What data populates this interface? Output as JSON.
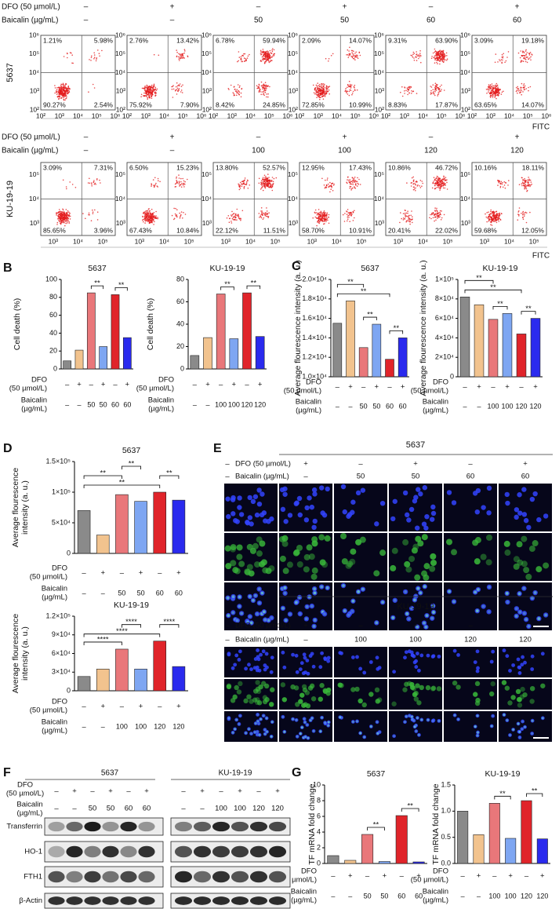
{
  "panel_letters": [
    "B",
    "C",
    "D",
    "E",
    "F",
    "G"
  ],
  "flow": {
    "axis_label": "FITC",
    "rows": [
      {
        "cell_line": "5637",
        "dfo_label": "DFO (50 µmol/L)",
        "baicalin_label": "Baicalin (µg/mL)",
        "dfo": [
          "–",
          "+",
          "–",
          "+",
          "–",
          "+"
        ],
        "baicalin": [
          "–",
          "–",
          "50",
          "50",
          "60",
          "60"
        ],
        "xticks": [
          "10²",
          "10³",
          "10⁴",
          "10⁵",
          "10⁶"
        ],
        "yticks": [
          "10⁶",
          "10⁵",
          "10⁴",
          "10³",
          "10²"
        ],
        "quadrants": [
          [
            "1.21%",
            "5.98%",
            "90.27%",
            "2.54%"
          ],
          [
            "2.76%",
            "13.42%",
            "75.92%",
            "7.90%"
          ],
          [
            "6.78%",
            "59.94%",
            "8.42%",
            "24.85%"
          ],
          [
            "2.09%",
            "14.07%",
            "72.85%",
            "10.99%"
          ],
          [
            "9.31%",
            "63.90%",
            "8.83%",
            "17.87%"
          ],
          [
            "3.09%",
            "19.18%",
            "63.65%",
            "14.07%"
          ]
        ]
      },
      {
        "cell_line": "KU-19-19",
        "dfo_label": "DFO (50 µmol/L)",
        "baicalin_label": "Baicalin (µg/mL)",
        "dfo": [
          "–",
          "+",
          "–",
          "+",
          "–",
          "+"
        ],
        "baicalin": [
          "–",
          "–",
          "100",
          "100",
          "120",
          "120"
        ],
        "xticks": [
          "10³",
          "10⁴",
          "10⁵"
        ],
        "yticks": [
          "10⁵",
          "10⁴",
          "10³"
        ],
        "quadrants": [
          [
            "3.09%",
            "7.31%",
            "85.65%",
            "3.96%"
          ],
          [
            "6.50%",
            "15.23%",
            "67.43%",
            "10.84%"
          ],
          [
            "13.80%",
            "52.57%",
            "22.12%",
            "11.51%"
          ],
          [
            "12.95%",
            "17.43%",
            "58.70%",
            "10.91%"
          ],
          [
            "10.86%",
            "46.72%",
            "20.41%",
            "22.02%"
          ],
          [
            "10.16%",
            "18.11%",
            "59.68%",
            "12.05%"
          ]
        ]
      }
    ]
  },
  "chart_data": [
    {
      "type": "bar",
      "title": "5637",
      "ylabel": [
        "Cell death (%)"
      ],
      "ylim": [
        0,
        100
      ],
      "yticks": [
        0,
        20,
        40,
        60,
        80,
        100
      ],
      "values": [
        9,
        21,
        85,
        25,
        83,
        35
      ],
      "colors": [
        "#8a8a8a",
        "#f2c38e",
        "#e9777a",
        "#7ea6f2",
        "#e0242a",
        "#2a2aee"
      ],
      "dfo_label": [
        "DFO",
        "(50 µmol/L)"
      ],
      "baicalin_label": [
        "Baicalin",
        "(µg/mL)"
      ],
      "dfo": [
        "–",
        "+",
        "–",
        "+",
        "–",
        "+"
      ],
      "baicalin": [
        "–",
        "–",
        "50",
        "50",
        "60",
        "60"
      ],
      "annotations": [
        {
          "text": "**",
          "between": [
            2,
            3
          ]
        },
        {
          "text": "**",
          "between": [
            4,
            5
          ]
        }
      ]
    },
    {
      "type": "bar",
      "title": "KU-19-19",
      "ylabel": [
        "Cell death (%)"
      ],
      "ylim": [
        0,
        80
      ],
      "yticks": [
        0,
        20,
        40,
        60,
        80
      ],
      "values": [
        12,
        28,
        67,
        27,
        68,
        29
      ],
      "colors": [
        "#8a8a8a",
        "#f2c38e",
        "#e9777a",
        "#7ea6f2",
        "#e0242a",
        "#2a2aee"
      ],
      "dfo_label": [
        "DFO",
        "(50 µmol/L)"
      ],
      "baicalin_label": [
        "Baicalin",
        "(µg/mL)"
      ],
      "dfo": [
        "–",
        "+",
        "–",
        "+",
        "–",
        "+"
      ],
      "baicalin": [
        "–",
        "–",
        "100",
        "100",
        "120",
        "120"
      ],
      "annotations": [
        {
          "text": "**",
          "between": [
            2,
            3
          ]
        },
        {
          "text": "**",
          "between": [
            4,
            5
          ]
        }
      ]
    },
    {
      "type": "bar",
      "title": "5637",
      "ylabel": [
        "Average flourescence intensity (a. u.)"
      ],
      "ylim": [
        10000,
        20000
      ],
      "yticks": [
        {
          "value": 10000,
          "label": "1.0×10⁴"
        },
        {
          "value": 12000,
          "label": "1.2×10⁴"
        },
        {
          "value": 14000,
          "label": "1.4×10⁴"
        },
        {
          "value": 16000,
          "label": "1.6×10⁴"
        },
        {
          "value": 18000,
          "label": "1.8×10⁴"
        },
        {
          "value": 20000,
          "label": "2.0×10⁴"
        }
      ],
      "values": [
        15500,
        17800,
        13000,
        15400,
        11800,
        14000
      ],
      "colors": [
        "#8a8a8a",
        "#f2c38e",
        "#e9777a",
        "#7ea6f2",
        "#e0242a",
        "#2a2aee"
      ],
      "dfo_label": [
        "DFO",
        "(50 µmol/L)"
      ],
      "baicalin_label": [
        "Baicalin",
        "(µg/mL)"
      ],
      "dfo": [
        "–",
        "+",
        "–",
        "+",
        "–",
        "+"
      ],
      "baicalin": [
        "–",
        "–",
        "50",
        "50",
        "60",
        "60"
      ],
      "annotations": [
        {
          "text": "**",
          "between": [
            0,
            4
          ]
        },
        {
          "text": "**",
          "between": [
            0,
            2
          ]
        },
        {
          "text": "**",
          "between": [
            2,
            3
          ]
        },
        {
          "text": "**",
          "between": [
            4,
            5
          ]
        }
      ]
    },
    {
      "type": "bar",
      "title": "KU-19-19",
      "ylabel": [
        "Average flourescence intensity (a. u.)"
      ],
      "ylim": [
        0,
        100000
      ],
      "yticks": [
        0,
        {
          "value": 20000,
          "label": "2×10⁴"
        },
        {
          "value": 40000,
          "label": "4×10⁴"
        },
        {
          "value": 60000,
          "label": "6×10⁴"
        },
        {
          "value": 80000,
          "label": "8×10⁴"
        },
        {
          "value": 100000,
          "label": "1×10⁵"
        }
      ],
      "values": [
        82000,
        74000,
        59000,
        65000,
        44000,
        60000
      ],
      "colors": [
        "#8a8a8a",
        "#f2c38e",
        "#e9777a",
        "#7ea6f2",
        "#e0242a",
        "#2a2aee"
      ],
      "dfo_label": [
        "DFO",
        "(50 µmol/L)"
      ],
      "baicalin_label": [
        "Baicalin",
        "(µg/mL)"
      ],
      "dfo": [
        "–",
        "+",
        "–",
        "+",
        "–",
        "+"
      ],
      "baicalin": [
        "–",
        "–",
        "100",
        "100",
        "120",
        "120"
      ],
      "annotations": [
        {
          "text": "**",
          "between": [
            0,
            4
          ]
        },
        {
          "text": "**",
          "between": [
            0,
            2
          ]
        },
        {
          "text": "**",
          "between": [
            2,
            3
          ]
        },
        {
          "text": "**",
          "between": [
            4,
            5
          ]
        }
      ]
    },
    {
      "type": "bar",
      "title": "5637",
      "ylabel": [
        "Average flourescence",
        "intensity (a. u.)"
      ],
      "ylim": [
        0,
        150000
      ],
      "yticks": [
        0,
        {
          "value": 50000,
          "label": "5×10⁴"
        },
        {
          "value": 100000,
          "label": "1×10⁵"
        },
        {
          "value": 150000,
          "label": "1.5×10⁵"
        }
      ],
      "values": [
        70000,
        30000,
        96000,
        85000,
        100000,
        87000
      ],
      "colors": [
        "#8a8a8a",
        "#f2c38e",
        "#e9777a",
        "#7ea6f2",
        "#e0242a",
        "#2a2aee"
      ],
      "dfo_label": [
        "DFO",
        "(50 µmol/L)"
      ],
      "baicalin_label": [
        "Baicalin",
        "(µg/mL)"
      ],
      "dfo": [
        "–",
        "+",
        "–",
        "+",
        "–",
        "+"
      ],
      "baicalin": [
        "–",
        "–",
        "50",
        "50",
        "60",
        "60"
      ],
      "annotations": [
        {
          "text": "**",
          "between": [
            0,
            4
          ]
        },
        {
          "text": "**",
          "between": [
            0,
            2
          ]
        },
        {
          "text": "**",
          "between": [
            2,
            3
          ]
        },
        {
          "text": "**",
          "between": [
            4,
            5
          ]
        }
      ]
    },
    {
      "type": "bar",
      "title": "KU-19-19",
      "ylabel": [
        "Average flourescence",
        "intensity (a. u.)"
      ],
      "ylim": [
        0,
        120000
      ],
      "yticks": [
        0,
        {
          "value": 30000,
          "label": "3×10⁴"
        },
        {
          "value": 60000,
          "label": "6×10⁴"
        },
        {
          "value": 90000,
          "label": "9×10⁴"
        },
        {
          "value": 120000,
          "label": "1.2×10⁵"
        }
      ],
      "values": [
        23000,
        35000,
        67000,
        35000,
        80000,
        39000
      ],
      "colors": [
        "#8a8a8a",
        "#f2c38e",
        "#e9777a",
        "#7ea6f2",
        "#e0242a",
        "#2a2aee"
      ],
      "dfo_label": [
        "DFO",
        "(50 µmol/L)"
      ],
      "baicalin_label": [
        "Baicalin",
        "(µg/mL)"
      ],
      "dfo": [
        "–",
        "+",
        "–",
        "+",
        "–",
        "+"
      ],
      "baicalin": [
        "–",
        "–",
        "100",
        "100",
        "120",
        "120"
      ],
      "annotations": [
        {
          "text": "****",
          "between": [
            0,
            4
          ]
        },
        {
          "text": "****",
          "between": [
            0,
            2
          ]
        },
        {
          "text": "****",
          "between": [
            2,
            3
          ]
        },
        {
          "text": "****",
          "between": [
            4,
            5
          ]
        }
      ]
    },
    {
      "type": "bar",
      "title": "5637",
      "ylabel": [
        "TF mRNA fold change"
      ],
      "ylim": [
        0,
        10
      ],
      "yticks": [
        0,
        2,
        4,
        6,
        8,
        10
      ],
      "values": [
        1,
        0.4,
        3.7,
        0.25,
        6.1,
        0.2
      ],
      "colors": [
        "#8a8a8a",
        "#f2c38e",
        "#e9777a",
        "#7ea6f2",
        "#e0242a",
        "#2a2aee"
      ],
      "dfo_label": [
        "DFO",
        "(50 µmol/L)"
      ],
      "baicalin_label": [
        "Baicalin",
        "(µg/mL)"
      ],
      "dfo": [
        "–",
        "+",
        "–",
        "+",
        "–",
        "+"
      ],
      "baicalin": [
        "–",
        "–",
        "50",
        "50",
        "60",
        "60"
      ],
      "annotations": [
        {
          "text": "**",
          "between": [
            2,
            3
          ]
        },
        {
          "text": "**",
          "between": [
            4,
            5
          ]
        }
      ]
    },
    {
      "type": "bar",
      "title": "KU-19-19",
      "ylabel": [
        "TF mRNA fold change"
      ],
      "ylim": [
        0,
        1.5
      ],
      "yticks": [
        {
          "value": 0,
          "label": "0.0"
        },
        0.5,
        {
          "value": 1,
          "label": "1.0"
        },
        1.5
      ],
      "values": [
        1.0,
        0.55,
        1.15,
        0.48,
        1.2,
        0.47
      ],
      "colors": [
        "#8a8a8a",
        "#f2c38e",
        "#e9777a",
        "#7ea6f2",
        "#e0242a",
        "#2a2aee"
      ],
      "dfo_label": [
        "DFO",
        "(50 µmol/L)"
      ],
      "baicalin_label": [
        "Baicalin",
        "(µg/mL)"
      ],
      "dfo": [
        "–",
        "+",
        "–",
        "+",
        "–",
        "+"
      ],
      "baicalin": [
        "–",
        "–",
        "100",
        "100",
        "120",
        "120"
      ],
      "annotations": [
        {
          "text": "**",
          "between": [
            2,
            3
          ]
        },
        {
          "text": "**",
          "between": [
            4,
            5
          ]
        }
      ]
    }
  ],
  "microscopy": {
    "groups": [
      {
        "title": "5637",
        "dfo_label": "DFO (50 µmol/L)",
        "baicalin_label": "Baicalin (µg/mL)",
        "dfo": [
          "–",
          "+",
          "–",
          "+",
          "–",
          "+"
        ],
        "baicalin": [
          "–",
          "–",
          "50",
          "50",
          "60",
          "60"
        ]
      },
      {
        "title": "KU-19-19",
        "dfo_label": "DFO (50 µmol/L)",
        "baicalin_label": "Baicalin (µg/mL)",
        "dfo": [
          "–",
          "+",
          "–",
          "+",
          "–",
          "+"
        ],
        "baicalin": [
          "–",
          "–",
          "100",
          "100",
          "120",
          "120"
        ]
      }
    ]
  },
  "western_blot": {
    "dfo_label": [
      "DFO",
      "(50 µmol/L)"
    ],
    "baicalin_label": [
      "Baicalin",
      "(µg/mL)"
    ],
    "bands": [
      "Transferrin",
      "HO-1",
      "FTH1",
      "β-Actin"
    ],
    "groups": [
      {
        "title": "5637",
        "dfo": [
          "–",
          "+",
          "–",
          "+",
          "–",
          "+"
        ],
        "baicalin": [
          "–",
          "–",
          "50",
          "50",
          "60",
          "60"
        ]
      },
      {
        "title": "KU-19-19",
        "dfo": [
          "–",
          "+",
          "–",
          "+",
          "–",
          "+"
        ],
        "baicalin": [
          "–",
          "–",
          "100",
          "100",
          "120",
          "120"
        ]
      }
    ]
  }
}
